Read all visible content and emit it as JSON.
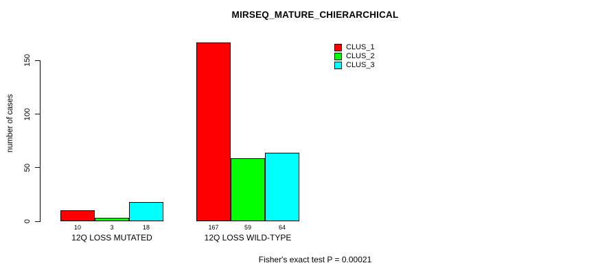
{
  "chart_data": {
    "type": "bar",
    "title": "MIRSEQ_MATURE_CHIERARCHICAL",
    "ylabel": "number of cases",
    "xlabel": "",
    "ylim": [
      0,
      167
    ],
    "yticks": [
      0,
      50,
      100,
      150
    ],
    "categories": [
      "12Q LOSS MUTATED",
      "12Q LOSS WILD-TYPE"
    ],
    "series": [
      {
        "name": "CLUS_1",
        "color": "#ff0000",
        "values": [
          10,
          167
        ]
      },
      {
        "name": "CLUS_2",
        "color": "#00ff00",
        "values": [
          3,
          59
        ]
      },
      {
        "name": "CLUS_3",
        "color": "#00ffff",
        "values": [
          18,
          64
        ]
      }
    ],
    "bar_value_labels": [
      [
        10,
        3,
        18
      ],
      [
        167,
        59,
        64
      ]
    ],
    "legend_position": "top-right",
    "grid": false,
    "bar_border_color": "#000000",
    "background_color": "#ffffff",
    "annotation": "Fisher's exact test P = 0.00021"
  }
}
